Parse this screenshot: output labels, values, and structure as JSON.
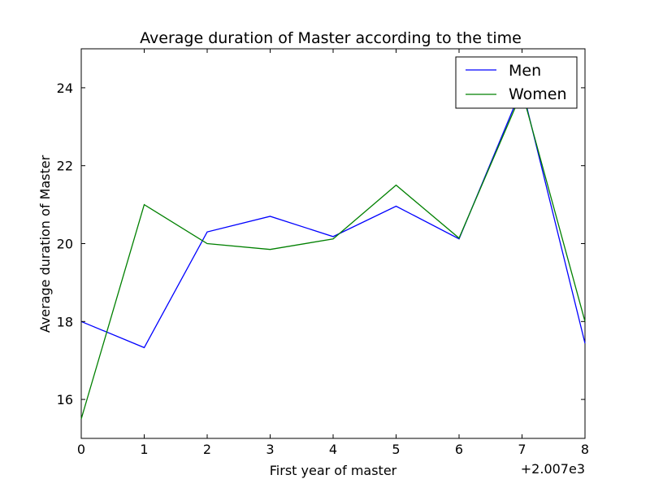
{
  "chart_data": {
    "type": "line",
    "title": "Average duration of Master according to the time",
    "xlabel": "First year of master",
    "ylabel": "Average duration of Master",
    "x_offset_label": "+2.007e3",
    "x": [
      0,
      1,
      2,
      3,
      4,
      5,
      6,
      7,
      8
    ],
    "x_ticks": [
      "0",
      "1",
      "2",
      "3",
      "4",
      "5",
      "6",
      "7",
      "8"
    ],
    "y_ticks": [
      "16",
      "18",
      "20",
      "22",
      "24"
    ],
    "xlim": [
      0,
      8
    ],
    "ylim": [
      15,
      25
    ],
    "grid": false,
    "legend_position": "top-right",
    "series": [
      {
        "name": "Men",
        "color": "#0000ff",
        "values": [
          18.0,
          17.33,
          20.3,
          20.7,
          20.18,
          20.96,
          20.12,
          24.0,
          17.44
        ]
      },
      {
        "name": "Women",
        "color": "#008000",
        "values": [
          15.5,
          21.0,
          20.0,
          19.85,
          20.12,
          21.5,
          20.14,
          23.9,
          18.0
        ]
      }
    ]
  }
}
